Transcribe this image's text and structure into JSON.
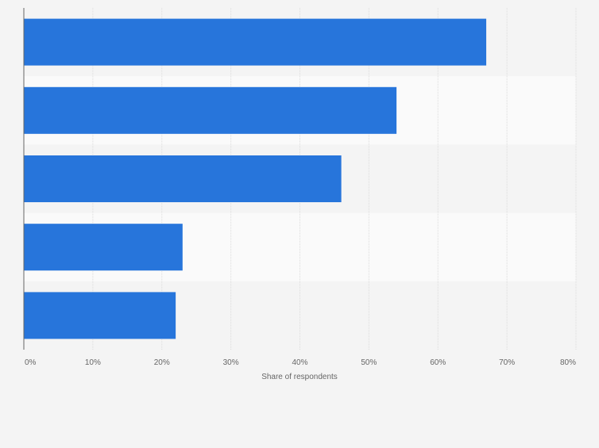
{
  "chart_data": {
    "type": "bar",
    "orientation": "horizontal",
    "categories": [
      "",
      "",
      "",
      "",
      ""
    ],
    "values": [
      67,
      54,
      46,
      23,
      22
    ],
    "value_unit": "%",
    "title": "",
    "xlabel": "Share of respondents",
    "ylabel": "",
    "xlim": [
      0,
      80
    ],
    "x_ticks": [
      "0%",
      "10%",
      "20%",
      "30%",
      "40%",
      "50%",
      "60%",
      "70%",
      "80%"
    ],
    "grid": true,
    "legend": "none",
    "colors": {
      "bar": "#2775db",
      "band_dark": "#f4f4f4",
      "band_light": "#fafafa",
      "grid": "#dcdcdc",
      "axis": "#666666",
      "tick_text": "#666666"
    }
  }
}
